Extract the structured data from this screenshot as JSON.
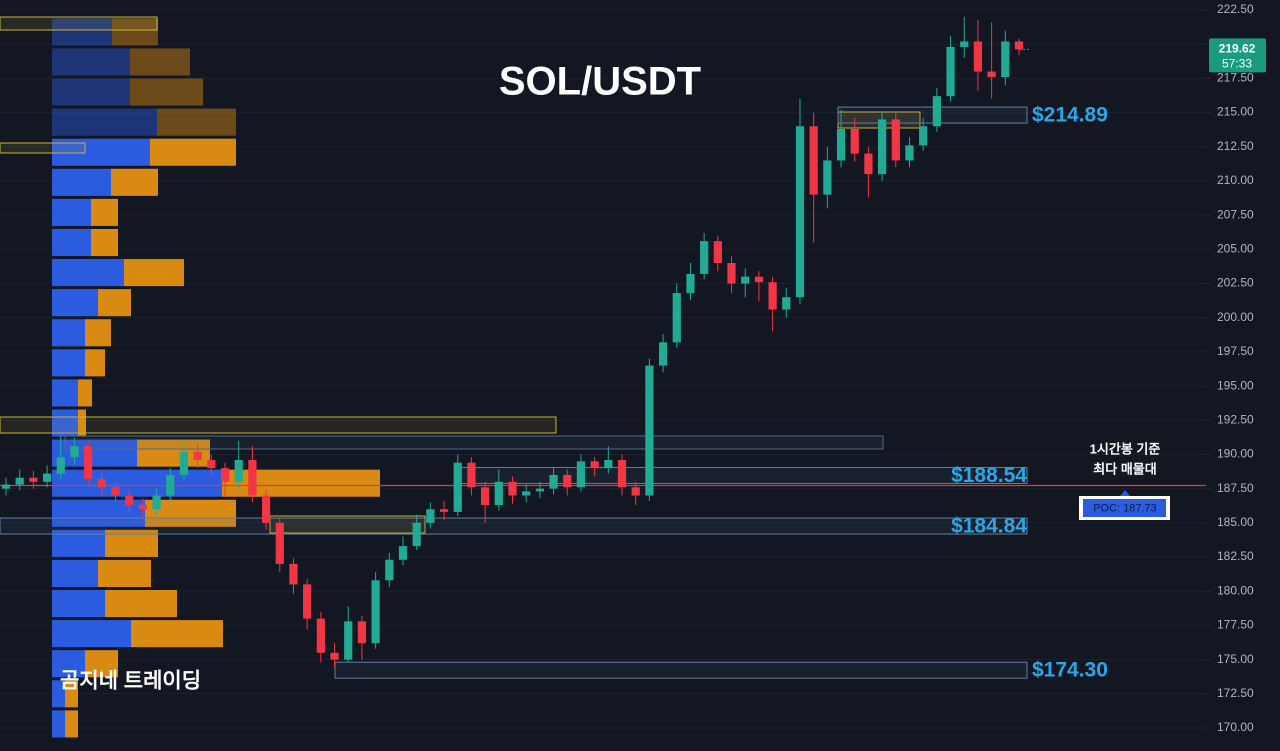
{
  "chart_data": {
    "type": "candlestick",
    "title": "SOL/USDT",
    "watermark": "곰지네 트레이딩",
    "colors": {
      "up": "#22ab94",
      "down": "#f23645",
      "buy": "#2b5ce0",
      "sell": "#d98a12",
      "poc": "#e53935",
      "level": "#2aa7e6"
    },
    "ylim": [
      170,
      222.5
    ],
    "yticks": [
      {
        "value": 170,
        "label": "170.00"
      },
      {
        "value": 172.5,
        "label": "172.50"
      },
      {
        "value": 175,
        "label": "175.00"
      },
      {
        "value": 177.5,
        "label": "177.50"
      },
      {
        "value": 180,
        "label": "180.00"
      },
      {
        "value": 182.5,
        "label": "182.50"
      },
      {
        "value": 185,
        "label": "185.00"
      },
      {
        "value": 187.5,
        "label": "187.50"
      },
      {
        "value": 190,
        "label": "190.00"
      },
      {
        "value": 192.5,
        "label": "192.50"
      },
      {
        "value": 195,
        "label": "195.00"
      },
      {
        "value": 197.5,
        "label": "197.50"
      },
      {
        "value": 200,
        "label": "200.00"
      },
      {
        "value": 202.5,
        "label": "202.50"
      },
      {
        "value": 205,
        "label": "205.00"
      },
      {
        "value": 207.5,
        "label": "207.50"
      },
      {
        "value": 210,
        "label": "210.00"
      },
      {
        "value": 212.5,
        "label": "212.50"
      },
      {
        "value": 215,
        "label": "215.00"
      },
      {
        "value": 217.5,
        "label": "217.50"
      },
      {
        "value": 220,
        "label": "220.00"
      },
      {
        "value": 222.5,
        "label": "222.50"
      }
    ],
    "ohlc": [
      [
        187.5,
        188.3,
        187.0,
        187.8
      ],
      [
        187.8,
        188.9,
        187.4,
        188.3
      ],
      [
        188.3,
        188.8,
        187.5,
        188.0
      ],
      [
        188.0,
        189.2,
        187.6,
        188.6
      ],
      [
        188.6,
        191.4,
        188.2,
        189.8
      ],
      [
        189.8,
        191.2,
        189.2,
        190.6
      ],
      [
        190.6,
        191.0,
        187.8,
        188.2
      ],
      [
        188.2,
        188.7,
        187.0,
        187.6
      ],
      [
        187.6,
        188.0,
        186.6,
        187.0
      ],
      [
        187.0,
        187.4,
        185.8,
        186.3
      ],
      [
        186.3,
        186.8,
        185.4,
        186.0
      ],
      [
        186.0,
        187.5,
        185.6,
        187.0
      ],
      [
        187.0,
        189.0,
        186.6,
        188.5
      ],
      [
        188.5,
        190.8,
        188.1,
        190.2
      ],
      [
        190.2,
        190.8,
        189.0,
        189.6
      ],
      [
        189.6,
        190.0,
        188.4,
        189.0
      ],
      [
        189.0,
        189.4,
        187.0,
        188.0
      ],
      [
        188.0,
        191.0,
        187.5,
        189.6
      ],
      [
        189.6,
        190.6,
        186.5,
        187.0
      ],
      [
        187.0,
        187.4,
        184.5,
        185.0
      ],
      [
        185.0,
        185.4,
        181.4,
        182.0
      ],
      [
        182.0,
        182.4,
        179.8,
        180.5
      ],
      [
        180.5,
        180.9,
        177.2,
        178.0
      ],
      [
        178.0,
        178.5,
        174.8,
        175.5
      ],
      [
        175.5,
        176.2,
        174.4,
        175.0
      ],
      [
        175.0,
        178.9,
        174.8,
        177.8
      ],
      [
        177.8,
        178.2,
        175.0,
        176.2
      ],
      [
        176.2,
        181.4,
        175.8,
        180.8
      ],
      [
        180.8,
        182.8,
        180.3,
        182.3
      ],
      [
        182.3,
        184.0,
        181.9,
        183.3
      ],
      [
        183.3,
        185.6,
        183.0,
        185.0
      ],
      [
        185.0,
        186.5,
        184.6,
        186.0
      ],
      [
        186.0,
        186.6,
        185.2,
        185.8
      ],
      [
        185.8,
        190.0,
        185.5,
        189.4
      ],
      [
        189.4,
        189.8,
        187.0,
        187.6
      ],
      [
        187.6,
        188.0,
        185.0,
        186.3
      ],
      [
        186.3,
        188.9,
        185.9,
        188.0
      ],
      [
        188.0,
        188.4,
        186.4,
        187.0
      ],
      [
        187.0,
        187.8,
        186.5,
        187.3
      ],
      [
        187.3,
        188.0,
        186.8,
        187.5
      ],
      [
        187.5,
        189.1,
        187.1,
        188.5
      ],
      [
        188.5,
        188.9,
        187.0,
        187.6
      ],
      [
        187.6,
        190.0,
        187.3,
        189.5
      ],
      [
        189.5,
        189.8,
        188.4,
        189.0
      ],
      [
        189.0,
        190.6,
        188.6,
        189.6
      ],
      [
        189.6,
        190.0,
        187.0,
        187.6
      ],
      [
        187.6,
        188.0,
        186.3,
        187.0
      ],
      [
        187.0,
        197.0,
        186.6,
        196.5
      ],
      [
        196.5,
        198.8,
        196.0,
        198.2
      ],
      [
        198.2,
        202.5,
        197.8,
        201.8
      ],
      [
        201.8,
        204.0,
        201.3,
        203.2
      ],
      [
        203.2,
        206.2,
        202.8,
        205.6
      ],
      [
        205.6,
        206.0,
        203.4,
        204.0
      ],
      [
        204.0,
        204.5,
        201.8,
        202.5
      ],
      [
        202.5,
        203.6,
        201.5,
        203.0
      ],
      [
        203.0,
        203.4,
        201.2,
        202.6
      ],
      [
        202.6,
        203.0,
        199.0,
        200.6
      ],
      [
        200.6,
        202.2,
        200.0,
        201.5
      ],
      [
        201.5,
        216.0,
        201.0,
        214.0
      ],
      [
        214.0,
        215.0,
        205.5,
        209.0
      ],
      [
        209.0,
        212.5,
        208.0,
        211.5
      ],
      [
        211.5,
        215.2,
        211.0,
        213.8
      ],
      [
        213.8,
        214.6,
        211.4,
        212.0
      ],
      [
        212.0,
        212.5,
        208.8,
        210.5
      ],
      [
        210.5,
        215.0,
        210.0,
        214.5
      ],
      [
        214.5,
        215.0,
        211.0,
        211.5
      ],
      [
        211.5,
        213.2,
        211.0,
        212.6
      ],
      [
        212.6,
        214.6,
        212.2,
        214.0
      ],
      [
        214.0,
        216.8,
        213.6,
        216.2
      ],
      [
        216.2,
        220.6,
        215.8,
        219.8
      ],
      [
        219.8,
        222.0,
        219.0,
        220.2
      ],
      [
        220.2,
        221.8,
        216.6,
        218.0
      ],
      [
        218.0,
        221.6,
        216.0,
        217.6
      ],
      [
        217.6,
        221.0,
        217.0,
        220.2
      ],
      [
        220.2,
        220.4,
        219.2,
        219.62
      ]
    ],
    "volume_profile": {
      "bins": [
        169.2,
        171.4,
        173.6,
        175.8,
        178.0,
        180.2,
        182.4,
        184.6,
        186.8,
        189.0,
        191.2,
        193.4,
        195.6,
        197.8,
        200.0,
        202.2,
        204.4,
        206.6,
        208.8,
        211.0,
        213.2,
        215.4,
        217.6,
        219.8,
        222.0
      ],
      "buy": [
        13,
        13,
        33,
        79,
        53,
        46,
        53,
        93,
        170,
        85,
        26,
        26,
        33,
        33,
        46,
        72,
        39,
        39,
        59,
        98,
        105,
        78,
        78,
        60
      ],
      "sell": [
        13,
        13,
        33,
        92,
        72,
        53,
        53,
        91,
        158,
        73,
        8,
        14,
        20,
        26,
        33,
        60,
        27,
        27,
        47,
        86,
        79,
        73,
        60,
        46
      ]
    },
    "levels": [
      {
        "value": 214.89,
        "label": "$214.89"
      },
      {
        "value": 188.54,
        "label": "$188.54"
      },
      {
        "value": 184.84,
        "label": "$184.84"
      },
      {
        "value": 174.3,
        "label": "$174.30"
      }
    ],
    "poc": {
      "value": 187.73,
      "label": "POC: 187.73"
    },
    "poc_note": [
      "1시간봉 기준",
      "최다 매물대"
    ],
    "last_price": {
      "value": 219.62,
      "label": "219.62"
    },
    "countdown": "57:33"
  }
}
